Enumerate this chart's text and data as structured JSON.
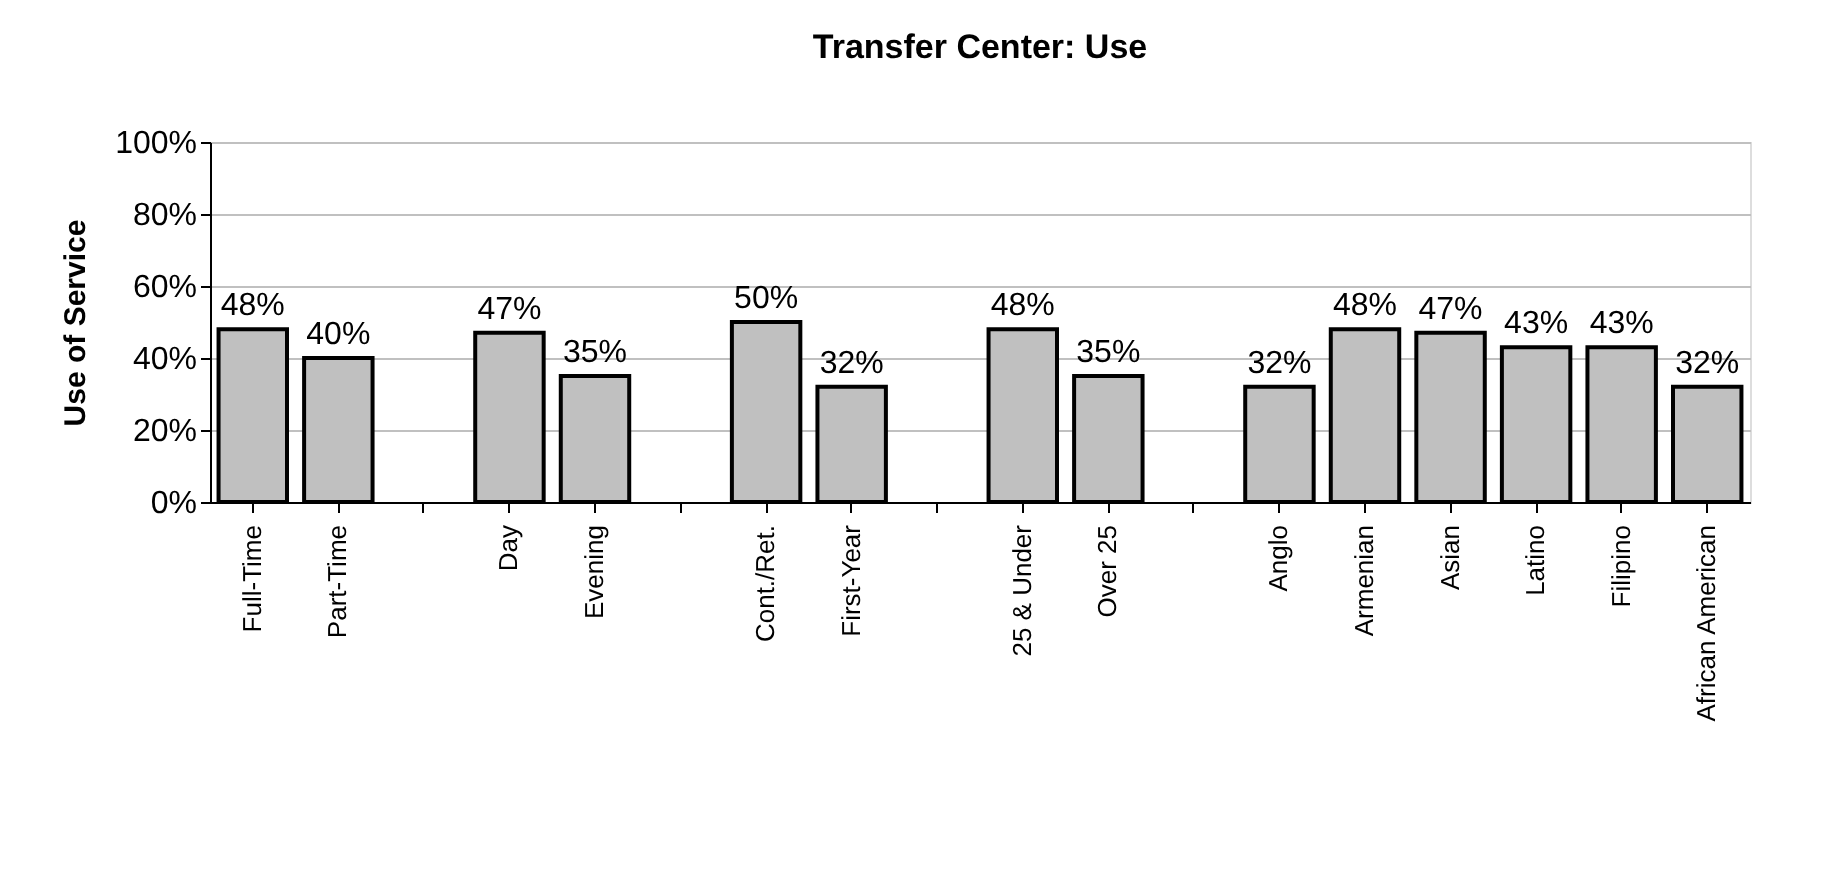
{
  "chart_data": {
    "type": "bar",
    "title": "Transfer Center: Use",
    "ylabel": "Use of Service",
    "categories": [
      "Full-Time",
      "Part-Time",
      null,
      "Day",
      "Evening",
      null,
      "Cont./Ret.",
      "First-Year",
      null,
      "25 & Under",
      "Over 25",
      null,
      "Anglo",
      "Armenian",
      "Asian",
      "Latino",
      "Filipino",
      "African American"
    ],
    "values": [
      48,
      40,
      null,
      47,
      35,
      null,
      50,
      32,
      null,
      48,
      35,
      null,
      32,
      48,
      47,
      43,
      43,
      32
    ],
    "value_labels": [
      "48%",
      "40%",
      null,
      "47%",
      "35%",
      null,
      "50%",
      "32%",
      null,
      "48%",
      "35%",
      null,
      "32%",
      "48%",
      "47%",
      "43%",
      "43%",
      "32%"
    ],
    "color": "#c0c0c0",
    "grid": "y",
    "ylim": [
      0,
      100
    ],
    "yticks": [
      {
        "value": 0,
        "label": "0%"
      },
      {
        "value": 20,
        "label": "20%"
      },
      {
        "value": 40,
        "label": "40%"
      },
      {
        "value": 60,
        "label": "60%"
      },
      {
        "value": 80,
        "label": "80%"
      },
      {
        "value": 100,
        "label": "100%"
      }
    ]
  }
}
